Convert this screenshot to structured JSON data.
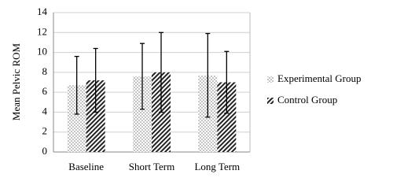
{
  "chart_data": {
    "type": "bar",
    "y_label": "Mean Pelvic ROM",
    "categories": [
      "Baseline",
      "Short Term",
      "Long Term"
    ],
    "series": [
      {
        "name": "Experimental Group",
        "color": "#555555",
        "pattern": "dots",
        "values": [
          6.7,
          7.6,
          7.7
        ],
        "errors": [
          2.9,
          3.3,
          4.2
        ]
      },
      {
        "name": "Control Group",
        "color": "#222222",
        "pattern": "hatch",
        "values": [
          7.2,
          8.0,
          7.0
        ],
        "errors": [
          3.2,
          4.0,
          3.1
        ]
      }
    ],
    "ylim": [
      0,
      14
    ],
    "yticks": [
      0,
      2,
      4,
      6,
      8,
      10,
      12,
      14
    ],
    "grid": true,
    "legend": "right"
  }
}
